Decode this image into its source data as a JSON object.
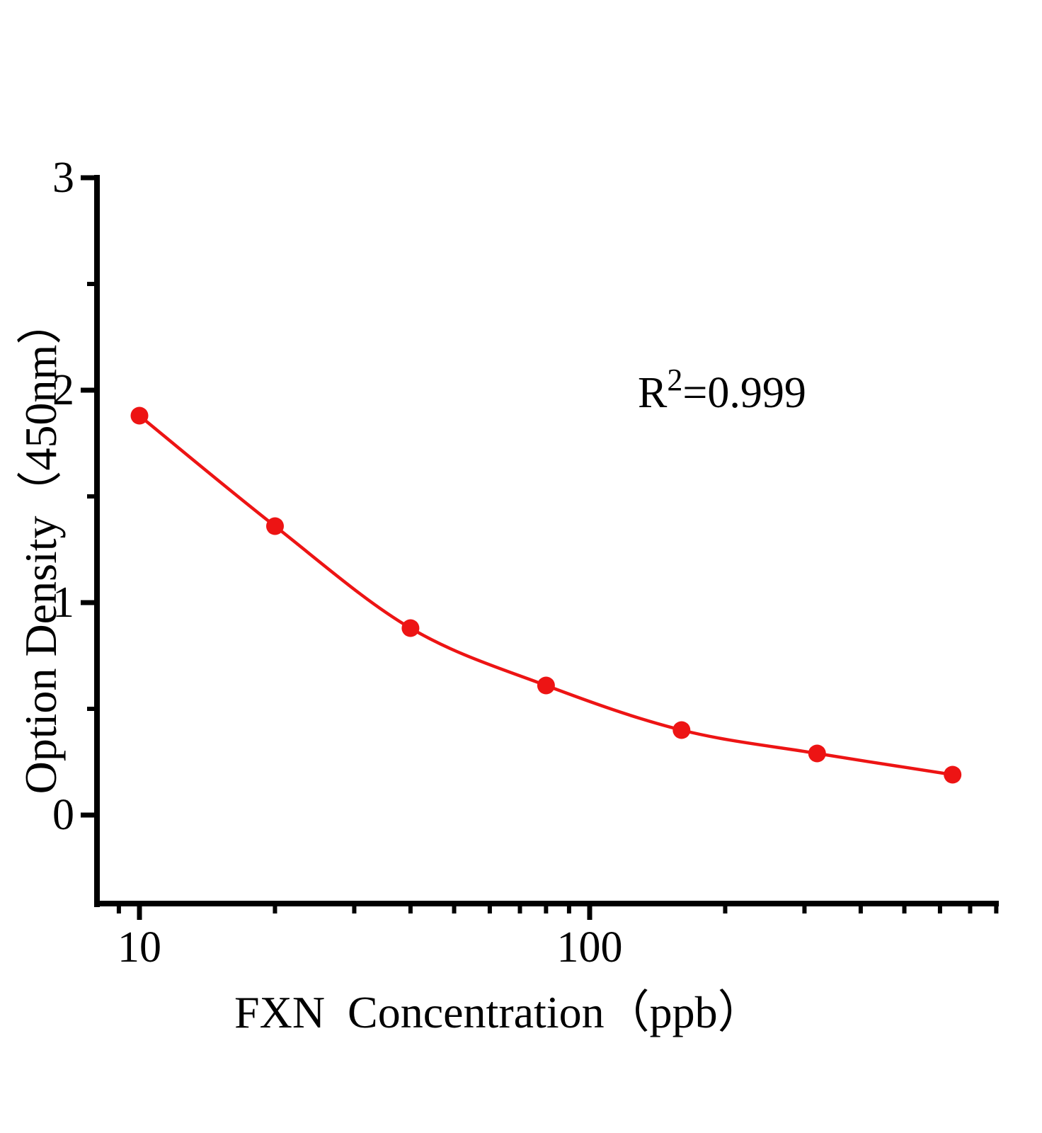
{
  "figure": {
    "background": "#ffffff",
    "colors": {
      "curve": "#ED1414",
      "marker": "#ED1414",
      "axis": "#000000",
      "text": "#000000"
    },
    "annotation": {
      "base": "R",
      "exponent": "2",
      "rest": "=0.999"
    },
    "x_axis": {
      "title": "FXN  Concentration（ppb）",
      "scale": "log",
      "major_ticks": [
        {
          "value": 10,
          "label": "10"
        },
        {
          "value": 100,
          "label": "100"
        }
      ],
      "minor_ticks": [
        9,
        20,
        30,
        40,
        50,
        60,
        70,
        80,
        90,
        200,
        300,
        400,
        500,
        600,
        700,
        800
      ]
    },
    "y_axis": {
      "title": "Option Density（450nm）",
      "scale": "linear",
      "major_ticks": [
        {
          "value": 3,
          "label": "3"
        },
        {
          "value": 2,
          "label": "2"
        },
        {
          "value": 1,
          "label": "1"
        },
        {
          "value": 0,
          "label": "0"
        }
      ],
      "minor_ticks": [
        2.5,
        1.5,
        0.5
      ]
    }
  },
  "chart_data": {
    "type": "scatter",
    "x": [
      10,
      20,
      40,
      80,
      160,
      320,
      640
    ],
    "y": [
      1.88,
      1.36,
      0.88,
      0.61,
      0.4,
      0.29,
      0.19
    ],
    "title": "",
    "xlabel": "FXN  Concentration（ppb）",
    "ylabel": "Option Density（450nm）",
    "x_scale": "log",
    "xlim": [
      8,
      800
    ],
    "ylim": [
      -0.42,
      3
    ],
    "y_tick_values": [
      0,
      1,
      2,
      3
    ],
    "x_major_tick_values": [
      10,
      100
    ],
    "r_squared": "0.999",
    "grid": false,
    "legend": false
  }
}
